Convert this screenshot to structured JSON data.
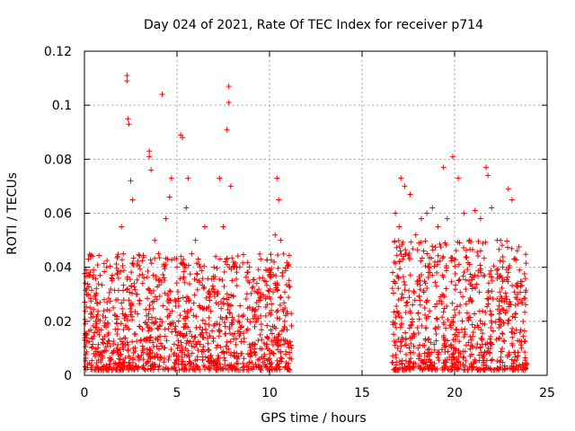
{
  "chart_data": {
    "type": "scatter",
    "title": "Day 024 of 2021, Rate Of TEC Index for receiver p714",
    "xlabel": "GPS time / hours",
    "ylabel": "ROTI / TECUs",
    "xlim": [
      0,
      25
    ],
    "ylim": [
      0,
      0.12
    ],
    "xticks": [
      "0",
      "5",
      "10",
      "15",
      "20",
      "25"
    ],
    "yticks": [
      "0",
      "0.02",
      "0.04",
      "0.06",
      "0.08",
      "0.1",
      "0.12"
    ],
    "grid": true,
    "marker": "+",
    "series": [
      {
        "name": "ROTI",
        "color": "#ff0000",
        "points": [
          [
            0.1,
            0.012
          ],
          [
            0.2,
            0.03
          ],
          [
            0.3,
            0.025
          ],
          [
            0.5,
            0.008
          ],
          [
            0.6,
            0.02
          ],
          [
            0.8,
            0.015
          ],
          [
            1.0,
            0.022
          ],
          [
            1.2,
            0.04
          ],
          [
            1.5,
            0.035
          ],
          [
            1.8,
            0.028
          ],
          [
            2.0,
            0.055
          ],
          [
            2.1,
            0.045
          ],
          [
            2.3,
            0.111
          ],
          [
            2.3,
            0.109
          ],
          [
            2.35,
            0.095
          ],
          [
            2.4,
            0.093
          ],
          [
            2.5,
            0.072
          ],
          [
            2.6,
            0.065
          ],
          [
            2.8,
            0.03
          ],
          [
            3.0,
            0.018
          ],
          [
            3.2,
            0.01
          ],
          [
            3.5,
            0.083
          ],
          [
            3.5,
            0.081
          ],
          [
            3.6,
            0.076
          ],
          [
            3.8,
            0.05
          ],
          [
            4.0,
            0.045
          ],
          [
            4.2,
            0.104
          ],
          [
            4.4,
            0.058
          ],
          [
            4.6,
            0.066
          ],
          [
            4.7,
            0.073
          ],
          [
            5.0,
            0.04
          ],
          [
            5.2,
            0.089
          ],
          [
            5.3,
            0.088
          ],
          [
            5.5,
            0.062
          ],
          [
            5.6,
            0.073
          ],
          [
            5.8,
            0.045
          ],
          [
            6.0,
            0.05
          ],
          [
            6.2,
            0.035
          ],
          [
            6.5,
            0.055
          ],
          [
            6.8,
            0.03
          ],
          [
            7.0,
            0.04
          ],
          [
            7.3,
            0.073
          ],
          [
            7.5,
            0.055
          ],
          [
            7.7,
            0.091
          ],
          [
            7.8,
            0.101
          ],
          [
            7.8,
            0.107
          ],
          [
            7.9,
            0.07
          ],
          [
            8.1,
            0.04
          ],
          [
            8.3,
            0.02
          ],
          [
            9.2,
            0.018
          ],
          [
            9.5,
            0.015
          ],
          [
            9.8,
            0.022
          ],
          [
            10.1,
            0.024
          ],
          [
            10.3,
            0.052
          ],
          [
            10.4,
            0.073
          ],
          [
            10.5,
            0.065
          ],
          [
            10.6,
            0.05
          ],
          [
            10.8,
            0.018
          ],
          [
            11.0,
            0.012
          ],
          [
            16.8,
            0.06
          ],
          [
            17.0,
            0.055
          ],
          [
            17.1,
            0.073
          ],
          [
            17.3,
            0.07
          ],
          [
            17.6,
            0.067
          ],
          [
            17.9,
            0.052
          ],
          [
            18.2,
            0.058
          ],
          [
            18.5,
            0.06
          ],
          [
            18.8,
            0.062
          ],
          [
            19.1,
            0.055
          ],
          [
            19.4,
            0.077
          ],
          [
            19.6,
            0.058
          ],
          [
            19.9,
            0.081
          ],
          [
            20.2,
            0.073
          ],
          [
            20.5,
            0.06
          ],
          [
            20.8,
            0.05
          ],
          [
            21.1,
            0.061
          ],
          [
            21.4,
            0.058
          ],
          [
            21.7,
            0.077
          ],
          [
            21.8,
            0.074
          ],
          [
            22.0,
            0.062
          ],
          [
            22.3,
            0.05
          ],
          [
            22.6,
            0.04
          ],
          [
            22.9,
            0.069
          ],
          [
            23.1,
            0.065
          ],
          [
            23.4,
            0.03
          ],
          [
            23.7,
            0.02
          ]
        ],
        "dense_bands": [
          {
            "x_range": [
              0.0,
              11.2
            ],
            "y_range": [
              0.002,
              0.045
            ]
          },
          {
            "x_range": [
              16.6,
              23.9
            ],
            "y_range": [
              0.002,
              0.05
            ]
          }
        ]
      }
    ]
  }
}
